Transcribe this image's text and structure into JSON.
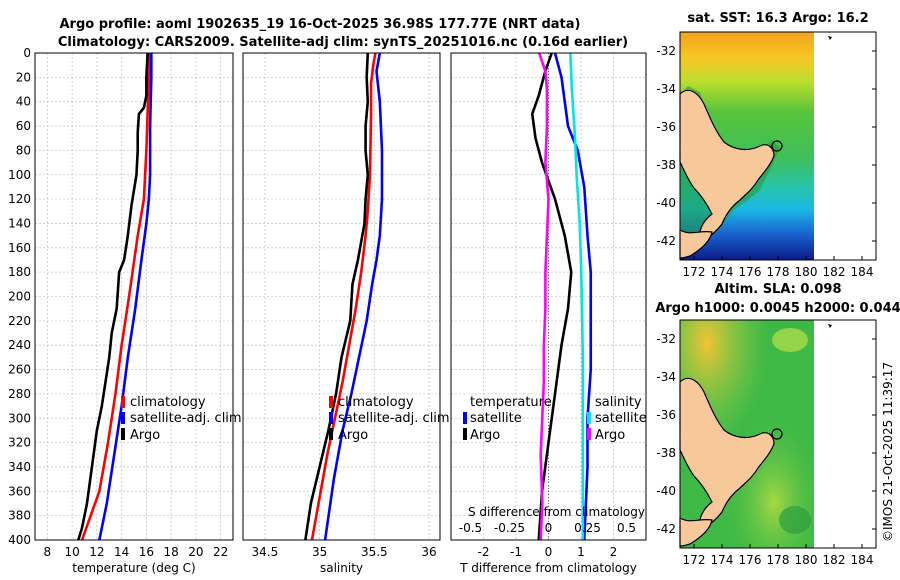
{
  "titles": {
    "line1": "Argo profile: aoml 1902635_19 16-Oct-2025 36.98S 177.77E (NRT data)",
    "line2": "Climatology: CARS2009. Satellite-adj clim: synTS_20251016.nc (0.16d earlier)"
  },
  "colors": {
    "climatology": "#ff0000",
    "satellite": "#0000ff",
    "argo": "#000000",
    "cyan": "#00e5e5",
    "magenta": "#ff00ff"
  },
  "legend_main": {
    "climatology": "climatology",
    "satellite": "satellite-adj. clim",
    "argo": "Argo"
  },
  "legend_diff": {
    "temperature": "temperature",
    "salinity": "salinity",
    "satellite_t": "satellite",
    "argo_t": "Argo",
    "satellite_s": "satellite",
    "argo_s": "Argo"
  },
  "chart_data": [
    {
      "type": "line",
      "name": "temperature-profile",
      "xlabel": "temperature (deg C)",
      "ylabel": "depth",
      "xlim": [
        7,
        23
      ],
      "ylim": [
        400,
        0
      ],
      "xticks": [
        8,
        10,
        12,
        14,
        16,
        18,
        20,
        22
      ],
      "yticks": [
        0,
        20,
        40,
        60,
        80,
        100,
        120,
        140,
        160,
        180,
        200,
        220,
        240,
        260,
        280,
        300,
        320,
        340,
        360,
        380,
        400
      ],
      "xtick_labels": [
        "8",
        "10",
        "12",
        "14",
        "16",
        "18",
        "20",
        "22"
      ],
      "ytick_labels": [
        "0",
        "20",
        "40",
        "60",
        "80",
        "100",
        "120",
        "140",
        "160",
        "180",
        "200",
        "220",
        "240",
        "260",
        "280",
        "300",
        "320",
        "340",
        "360",
        "380",
        "400"
      ],
      "series": [
        {
          "name": "climatology",
          "color": "#ff0000",
          "x": [
            16.2,
            16.2,
            16.1,
            16.0,
            15.9,
            15.8,
            15.3,
            14.6,
            14.0,
            13.5,
            12.9,
            12.2,
            11.5,
            10.8
          ],
          "y": [
            0,
            20,
            50,
            80,
            100,
            120,
            150,
            200,
            240,
            280,
            320,
            360,
            380,
            400
          ]
        },
        {
          "name": "satellite-adj. clim",
          "color": "#0000ff",
          "x": [
            16.4,
            16.4,
            16.3,
            16.3,
            16.3,
            16.2,
            16.0,
            15.6,
            15.1,
            14.5,
            14.0,
            13.4,
            12.8,
            12.2
          ],
          "y": [
            0,
            20,
            60,
            80,
            100,
            120,
            140,
            170,
            210,
            250,
            290,
            330,
            370,
            400
          ]
        },
        {
          "name": "Argo",
          "color": "#000000",
          "x": [
            16.1,
            16.0,
            16.0,
            15.8,
            15.4,
            15.3,
            15.3,
            15.2,
            14.8,
            14.5,
            14.2,
            13.8,
            13.6,
            13.2,
            13.0,
            12.7,
            12.4,
            12.0,
            11.6,
            11.2,
            10.8,
            10.5
          ],
          "y": [
            0,
            20,
            35,
            45,
            50,
            65,
            80,
            100,
            125,
            150,
            170,
            180,
            210,
            230,
            250,
            270,
            290,
            310,
            340,
            370,
            390,
            400
          ]
        }
      ]
    },
    {
      "type": "line",
      "name": "salinity-profile",
      "xlabel": "salinity",
      "ylabel": "depth",
      "xlim": [
        34.3,
        36.1
      ],
      "ylim": [
        400,
        0
      ],
      "xticks": [
        34.5,
        35,
        35.5,
        36
      ],
      "yticks": [
        0,
        20,
        40,
        60,
        80,
        100,
        120,
        140,
        160,
        180,
        200,
        220,
        240,
        260,
        280,
        300,
        320,
        340,
        360,
        380,
        400
      ],
      "xtick_labels": [
        "34.5",
        "35",
        "35.5",
        "36"
      ],
      "series": [
        {
          "name": "climatology",
          "color": "#ff0000",
          "x": [
            35.51,
            35.49,
            35.47,
            35.47,
            35.46,
            35.44,
            35.42,
            35.38,
            35.33,
            35.27,
            35.21,
            35.14,
            35.07,
            34.99,
            34.93
          ],
          "y": [
            0,
            10,
            25,
            50,
            100,
            130,
            150,
            180,
            210,
            240,
            270,
            300,
            330,
            370,
            400
          ]
        },
        {
          "name": "satellite-adj. clim",
          "color": "#0000ff",
          "x": [
            35.55,
            35.52,
            35.55,
            35.57,
            35.57,
            35.55,
            35.52,
            35.48,
            35.43,
            35.36,
            35.29,
            35.21,
            35.13,
            35.05
          ],
          "y": [
            0,
            15,
            40,
            80,
            120,
            150,
            170,
            190,
            220,
            250,
            280,
            310,
            350,
            400
          ]
        },
        {
          "name": "Argo",
          "color": "#000000",
          "x": [
            35.44,
            35.43,
            35.44,
            35.42,
            35.42,
            35.44,
            35.42,
            35.41,
            35.37,
            35.35,
            35.3,
            35.28,
            35.2,
            35.15,
            35.08,
            35.0,
            34.92,
            34.87
          ],
          "y": [
            0,
            20,
            40,
            60,
            80,
            100,
            120,
            140,
            160,
            170,
            190,
            220,
            250,
            280,
            310,
            340,
            370,
            400
          ]
        }
      ]
    },
    {
      "type": "line",
      "name": "difference-profile",
      "xlabel": "T difference from climatology",
      "x2label": "S difference from climatology",
      "xlim": [
        -3,
        3
      ],
      "ylim": [
        400,
        0
      ],
      "xticks": [
        -2,
        -1,
        0,
        1,
        2
      ],
      "xtick_labels": [
        "-2",
        "-1",
        "0",
        "1",
        "2"
      ],
      "x2ticks": [
        -0.5,
        -0.25,
        0,
        0.25,
        0.5
      ],
      "x2tick_labels": [
        "-0.5",
        "-0.25",
        "0",
        "0.25",
        "0.5"
      ],
      "yticks": [
        0,
        20,
        40,
        60,
        80,
        100,
        120,
        140,
        160,
        180,
        200,
        220,
        240,
        260,
        280,
        300,
        320,
        340,
        360,
        380,
        400
      ],
      "series": [
        {
          "name": "temperature satellite",
          "color": "#0000ff",
          "x": [
            0.2,
            0.4,
            0.5,
            0.6,
            0.9,
            1.1,
            1.2,
            1.3,
            1.3,
            1.3,
            1.2,
            1.2,
            1.1
          ],
          "y": [
            0,
            20,
            40,
            60,
            80,
            110,
            150,
            180,
            220,
            260,
            300,
            340,
            400
          ]
        },
        {
          "name": "temperature Argo",
          "color": "#000000",
          "x": [
            0.1,
            -0.1,
            -0.3,
            -0.5,
            -0.4,
            -0.2,
            0.2,
            0.5,
            0.7,
            0.6,
            0.4,
            0.2,
            0.0,
            -0.2,
            -0.3
          ],
          "y": [
            0,
            15,
            35,
            50,
            70,
            90,
            120,
            150,
            180,
            210,
            240,
            280,
            320,
            360,
            400
          ]
        },
        {
          "name": "salinity satellite",
          "color": "#00e5e5",
          "x": [
            0.14,
            0.15,
            0.17,
            0.18,
            0.2,
            0.21,
            0.22,
            0.22,
            0.22
          ],
          "y": [
            0,
            30,
            70,
            100,
            140,
            180,
            250,
            320,
            400
          ]
        },
        {
          "name": "salinity Argo",
          "color": "#ff00ff",
          "x": [
            -0.06,
            -0.02,
            -0.01,
            -0.01,
            -0.02,
            0.0,
            -0.01,
            -0.02,
            -0.02,
            -0.03,
            -0.03,
            -0.04,
            -0.05,
            -0.04,
            -0.05
          ],
          "y": [
            0,
            15,
            30,
            60,
            90,
            120,
            150,
            180,
            210,
            240,
            270,
            300,
            330,
            370,
            400
          ]
        }
      ]
    },
    {
      "type": "heatmap",
      "name": "sst-map",
      "title": "sat. SST: 16.3 Argo: 16.2",
      "xticks": [
        172,
        174,
        176,
        178,
        180,
        182,
        184
      ],
      "xtick_labels": [
        "172",
        "174",
        "176",
        "178",
        "180",
        "182",
        "184"
      ],
      "yticks": [
        -32,
        -34,
        -36,
        -38,
        -40,
        -42
      ],
      "ytick_labels": [
        "-32",
        "-34",
        "-36",
        "-38",
        "-40",
        "-42"
      ],
      "xlim": [
        171,
        185
      ],
      "ylim": [
        -43,
        -31
      ],
      "argo_position": {
        "lon": 177.77,
        "lat": -36.98
      }
    },
    {
      "type": "heatmap",
      "name": "sla-map",
      "title": "Altim. SLA: 0.098",
      "subtitle": "Argo h1000: 0.0045 h2000: 0.044",
      "xticks": [
        172,
        174,
        176,
        178,
        180,
        182,
        184
      ],
      "xtick_labels": [
        "172",
        "174",
        "176",
        "178",
        "180",
        "182",
        "184"
      ],
      "yticks": [
        -32,
        -34,
        -36,
        -38,
        -40,
        -42
      ],
      "ytick_labels": [
        "-32",
        "-34",
        "-36",
        "-38",
        "-40",
        "-42"
      ],
      "xlim": [
        171,
        185
      ],
      "ylim": [
        -43,
        -31
      ],
      "argo_position": {
        "lon": 177.77,
        "lat": -36.98
      }
    }
  ],
  "watermark": "©IMOS 21-Oct-2025 11:39:17"
}
